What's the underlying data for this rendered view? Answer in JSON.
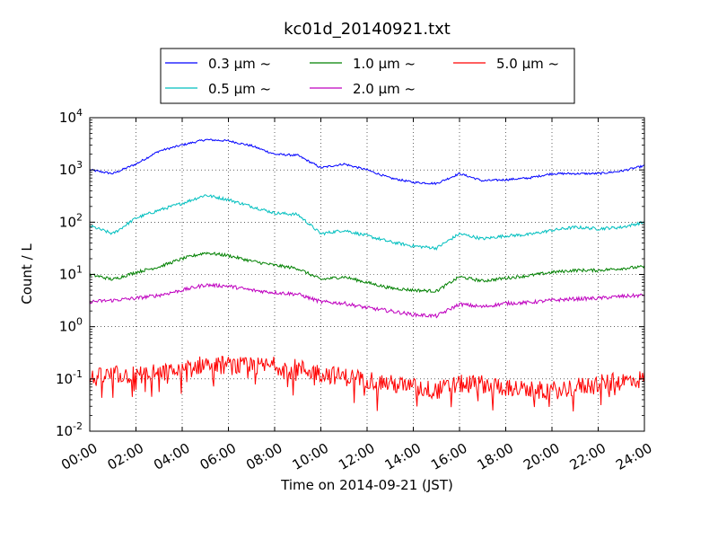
{
  "chart_data": {
    "type": "line",
    "title": "kc01d_20140921.txt",
    "xlabel": "Time on 2014-09-21 (JST)",
    "ylabel": "Count / L",
    "yscale": "log",
    "ylim": [
      0.01,
      10000
    ],
    "xlim": [
      "00:00",
      "24:00"
    ],
    "grid": true,
    "legend_position": "top",
    "x_ticks": [
      "00:00",
      "02:00",
      "04:00",
      "06:00",
      "08:00",
      "10:00",
      "12:00",
      "14:00",
      "16:00",
      "18:00",
      "20:00",
      "22:00",
      "24:00"
    ],
    "y_ticks": [
      {
        "value": 0.01,
        "base": "10",
        "exp": "-2"
      },
      {
        "value": 0.1,
        "base": "10",
        "exp": "-1"
      },
      {
        "value": 1,
        "base": "10",
        "exp": "0"
      },
      {
        "value": 10,
        "base": "10",
        "exp": "1"
      },
      {
        "value": 100,
        "base": "10",
        "exp": "2"
      },
      {
        "value": 1000,
        "base": "10",
        "exp": "3"
      },
      {
        "value": 10000,
        "base": "10",
        "exp": "4"
      }
    ],
    "x": [
      "00:00",
      "01:00",
      "02:00",
      "03:00",
      "04:00",
      "05:00",
      "06:00",
      "07:00",
      "08:00",
      "09:00",
      "10:00",
      "11:00",
      "12:00",
      "13:00",
      "14:00",
      "15:00",
      "16:00",
      "17:00",
      "18:00",
      "19:00",
      "20:00",
      "21:00",
      "22:00",
      "23:00",
      "24:00"
    ],
    "series": [
      {
        "name": "0.3 μm ~",
        "color": "#0000ff",
        "noise": 0.02,
        "values": [
          1000,
          850,
          1300,
          2300,
          3000,
          3800,
          3600,
          2900,
          2000,
          1900,
          1100,
          1300,
          1000,
          700,
          580,
          550,
          850,
          620,
          650,
          700,
          850,
          850,
          850,
          950,
          1200
        ]
      },
      {
        "name": "0.5 μm ~",
        "color": "#00bfbf",
        "noise": 0.03,
        "values": [
          85,
          60,
          120,
          170,
          230,
          330,
          270,
          200,
          150,
          140,
          60,
          70,
          55,
          42,
          35,
          32,
          60,
          48,
          55,
          58,
          70,
          80,
          75,
          80,
          100
        ]
      },
      {
        "name": "1.0 μm ~",
        "color": "#008000",
        "noise": 0.03,
        "values": [
          10,
          8,
          11,
          14,
          20,
          26,
          23,
          18,
          15,
          13,
          8,
          9,
          7,
          5.5,
          5,
          4.8,
          9,
          7.5,
          8.5,
          9.5,
          11,
          12,
          12,
          13,
          14
        ]
      },
      {
        "name": "2.0 μm ~",
        "color": "#bf00bf",
        "noise": 0.035,
        "values": [
          3,
          3.2,
          3.5,
          4,
          5,
          6.3,
          6,
          5,
          4.5,
          4.2,
          3,
          2.8,
          2.3,
          2,
          1.7,
          1.6,
          2.7,
          2.4,
          2.8,
          2.9,
          3.2,
          3.4,
          3.5,
          3.8,
          4
        ]
      },
      {
        "name": "5.0 μm ~",
        "color": "#ff0000",
        "noise": 0.18,
        "values": [
          0.1,
          0.12,
          0.12,
          0.13,
          0.14,
          0.2,
          0.18,
          0.17,
          0.18,
          0.16,
          0.13,
          0.11,
          0.1,
          0.08,
          0.07,
          0.06,
          0.08,
          0.08,
          0.07,
          0.06,
          0.06,
          0.07,
          0.08,
          0.09,
          0.1
        ]
      }
    ]
  }
}
